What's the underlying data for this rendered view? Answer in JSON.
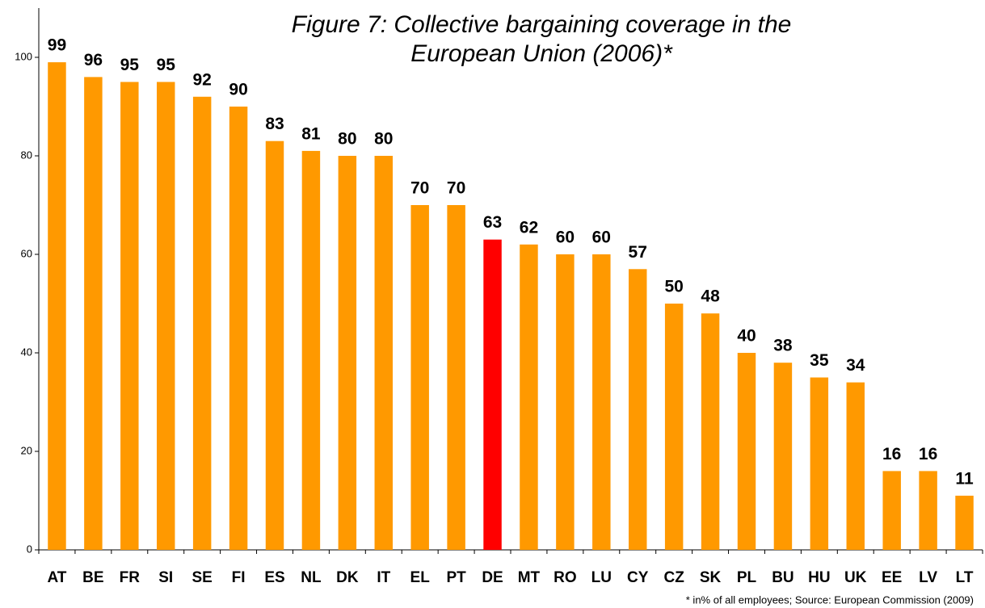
{
  "chart_data": {
    "type": "bar",
    "title": [
      "Figure 7: Collective bargaining coverage in the",
      "European Union (2006)*"
    ],
    "footnote": "* in% of all employees; Source: European Commission (2009)",
    "categories": [
      "AT",
      "BE",
      "FR",
      "SI",
      "SE",
      "FI",
      "ES",
      "NL",
      "DK",
      "IT",
      "EL",
      "PT",
      "DE",
      "MT",
      "RO",
      "LU",
      "CY",
      "CZ",
      "SK",
      "PL",
      "BU",
      "HU",
      "UK",
      "EE",
      "LV",
      "LT"
    ],
    "values": [
      99,
      96,
      95,
      95,
      92,
      90,
      83,
      81,
      80,
      80,
      70,
      70,
      63,
      62,
      60,
      60,
      57,
      50,
      48,
      40,
      38,
      35,
      34,
      16,
      16,
      11
    ],
    "colors": [
      "#FF9900",
      "#FF9900",
      "#FF9900",
      "#FF9900",
      "#FF9900",
      "#FF9900",
      "#FF9900",
      "#FF9900",
      "#FF9900",
      "#FF9900",
      "#FF9900",
      "#FF9900",
      "#FF0000",
      "#FF9900",
      "#FF9900",
      "#FF9900",
      "#FF9900",
      "#FF9900",
      "#FF9900",
      "#FF9900",
      "#FF9900",
      "#FF9900",
      "#FF9900",
      "#FF9900",
      "#FF9900",
      "#FF9900"
    ],
    "ylim": [
      0,
      110
    ],
    "yticks": [
      0,
      20,
      40,
      60,
      80,
      100
    ],
    "grid": false
  }
}
